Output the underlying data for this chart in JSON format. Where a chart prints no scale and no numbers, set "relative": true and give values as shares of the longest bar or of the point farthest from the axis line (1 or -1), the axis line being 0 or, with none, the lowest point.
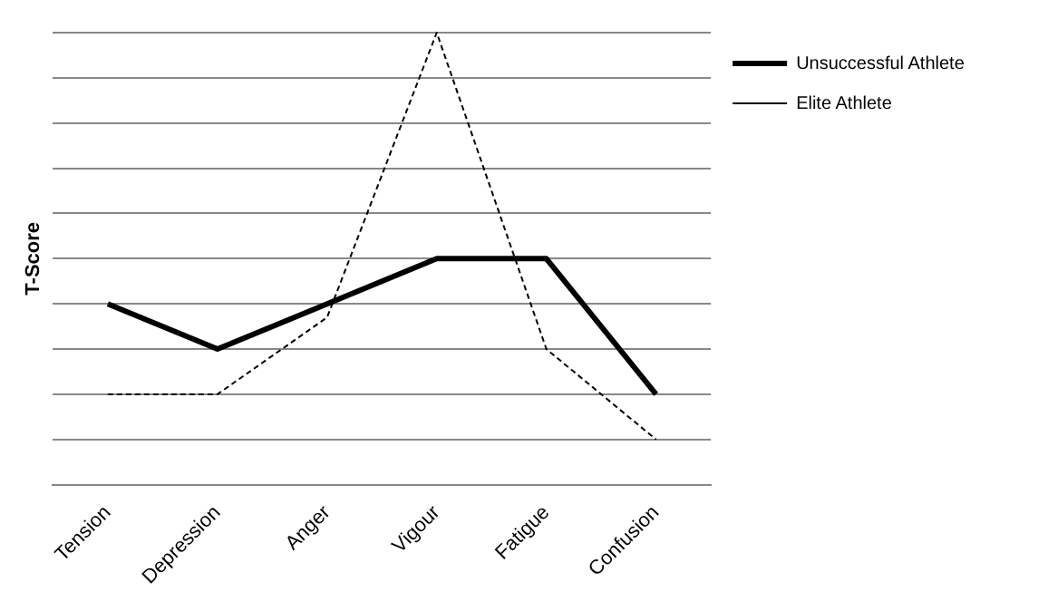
{
  "chart_data": {
    "type": "line",
    "relative": true,
    "ylabel": "T-Score",
    "categories": [
      "Tension",
      "Depression",
      "Anger",
      "Vigour",
      "Fatigue",
      "Confusion"
    ],
    "series": [
      {
        "name": "Unsuccessful Athlete",
        "color": "#000000",
        "line_style": "solid",
        "values": [
          0.4,
          0.3,
          0.4,
          0.5,
          0.5,
          0.2
        ]
      },
      {
        "name": "Elite Athlete",
        "color": "#000000",
        "line_style": "dashed",
        "values": [
          0.2,
          0.2,
          0.37,
          1,
          0.3,
          0.1
        ]
      }
    ],
    "grid": "y",
    "legend": "top right",
    "marker": "none"
  }
}
